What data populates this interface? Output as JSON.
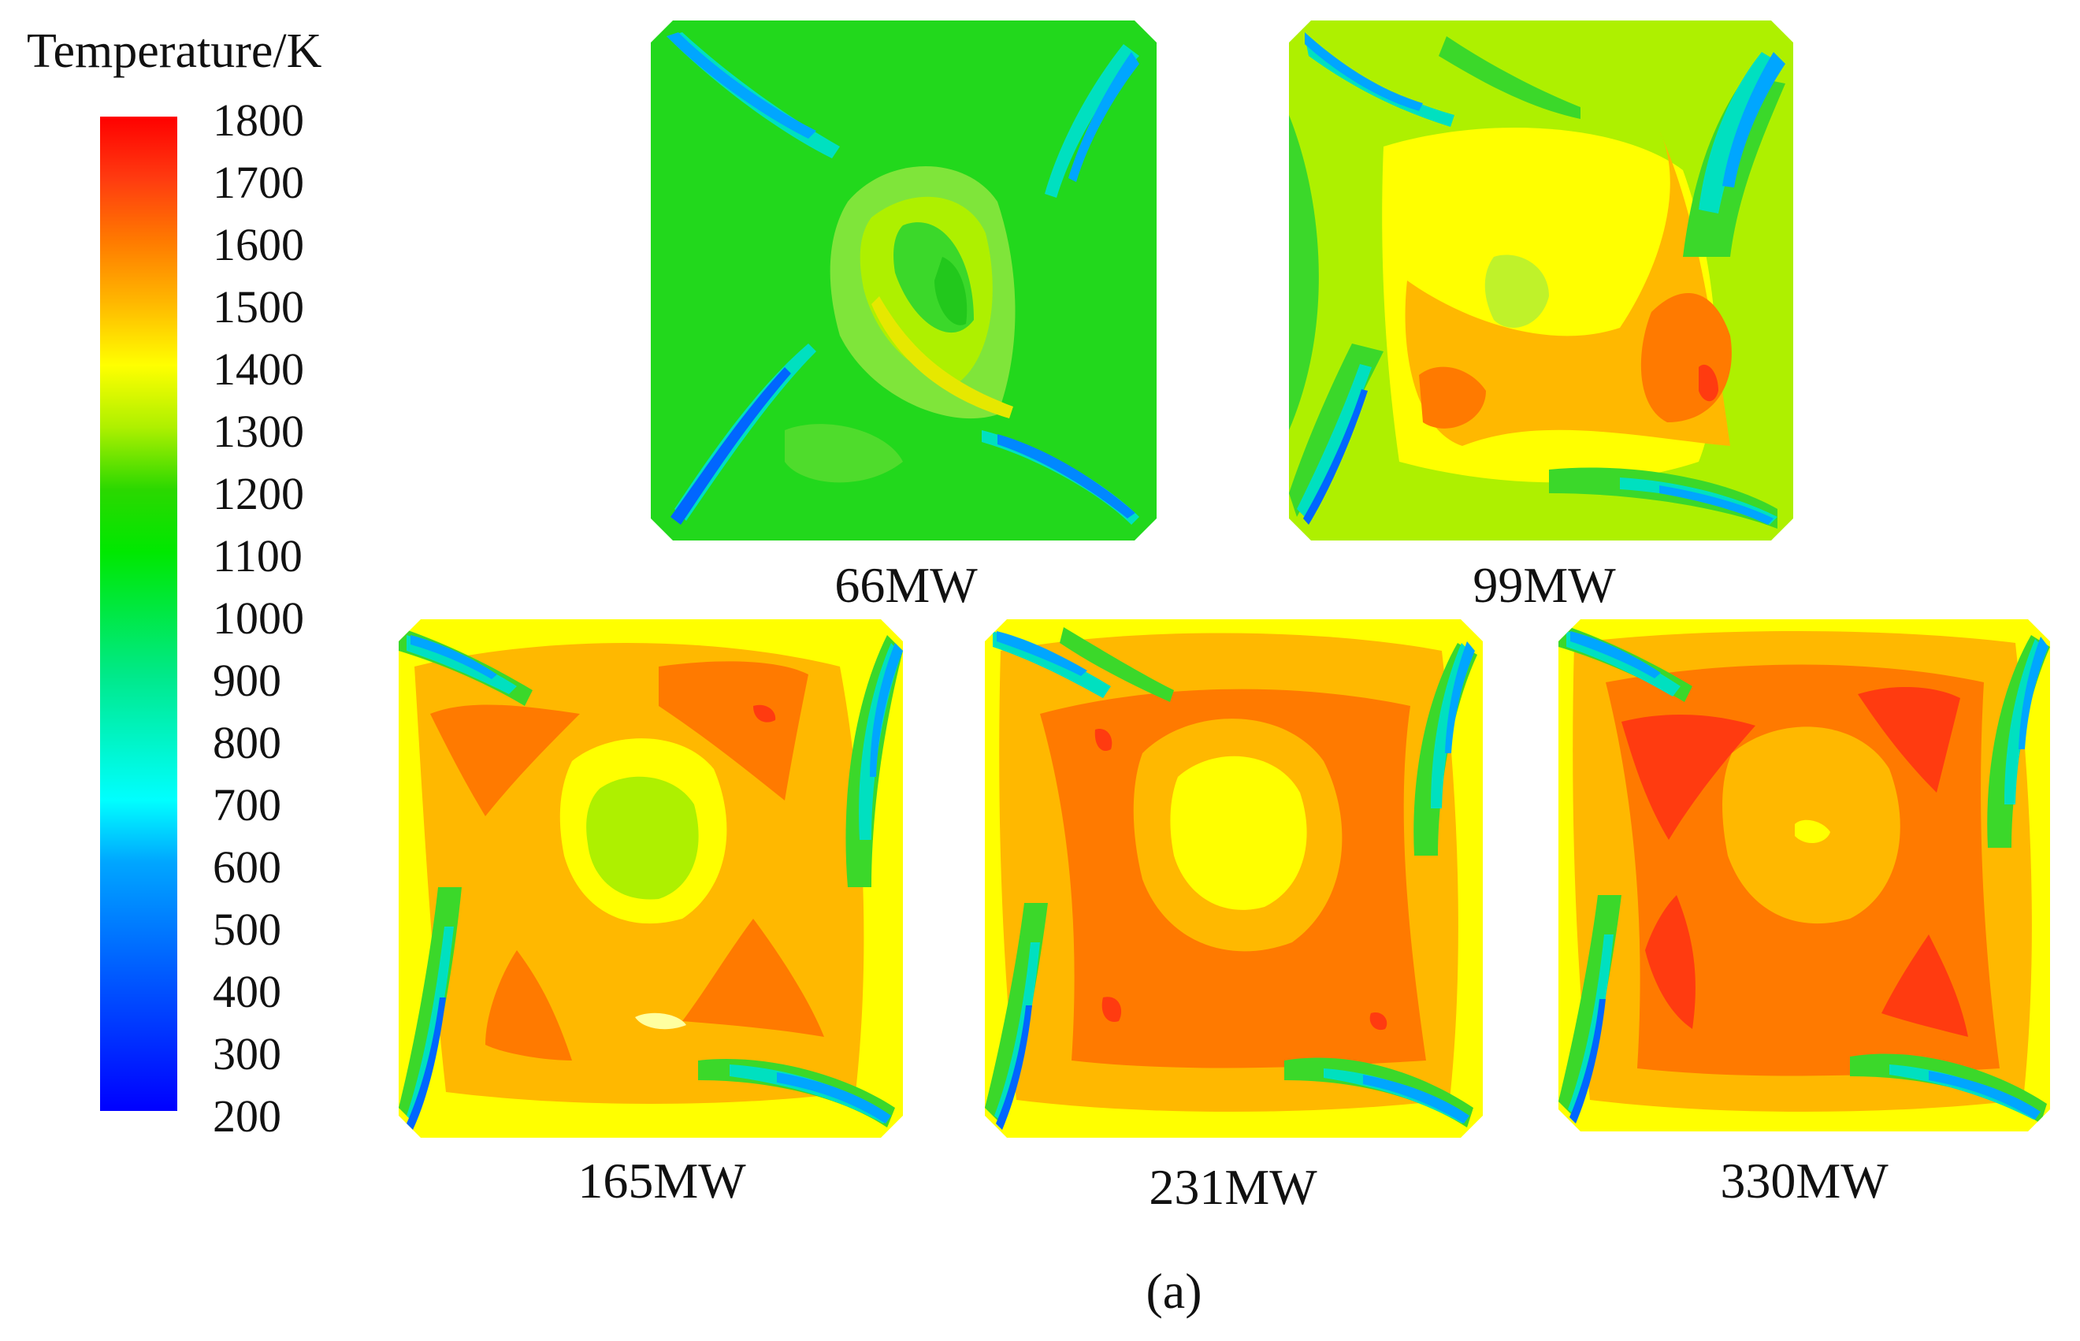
{
  "legend": {
    "title": "Temperature/K",
    "ticks": [
      "1800",
      "1700",
      "1600",
      "1500",
      "1400",
      "1300",
      "1200",
      "1100",
      "1000",
      "900",
      "800",
      "700",
      "600",
      "500",
      "400",
      "300",
      "200"
    ],
    "colors": [
      "#0000ff",
      "#00a6ff",
      "#00ffff",
      "#00e800",
      "#aef000",
      "#ffff00",
      "#ffb800",
      "#ff7a00",
      "#ff0000"
    ]
  },
  "panels": [
    {
      "label": "66MW"
    },
    {
      "label": "99MW"
    },
    {
      "label": "165MW"
    },
    {
      "label": "231MW"
    },
    {
      "label": "330MW"
    }
  ],
  "figure_label": "(a)"
}
